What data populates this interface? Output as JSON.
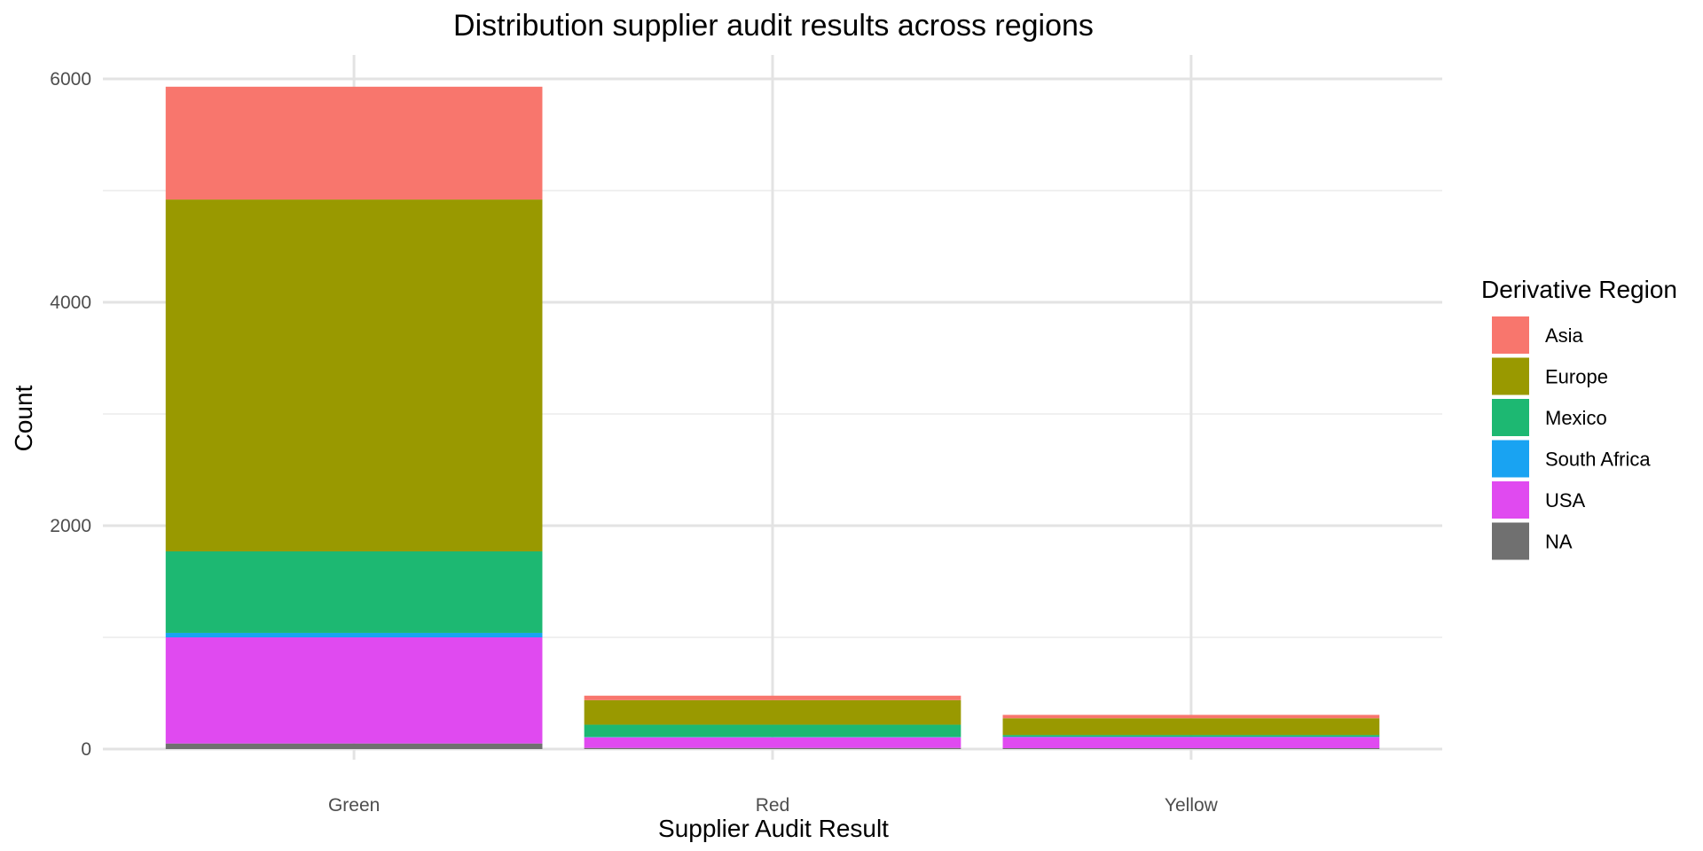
{
  "chart_data": {
    "type": "bar",
    "stacked": true,
    "title": "Distribution supplier audit results across regions",
    "xlabel": "Supplier Audit Result",
    "ylabel": "Count",
    "categories": [
      "Green",
      "Red",
      "Yellow"
    ],
    "ylim": [
      0,
      6200
    ],
    "yticks": [
      0,
      2000,
      4000,
      6000
    ],
    "grid": true,
    "legend": {
      "title": "Derivative Region",
      "position": "right"
    },
    "series": [
      {
        "name": "Asia",
        "color": "#F8766D",
        "values": [
          1010,
          40,
          30
        ]
      },
      {
        "name": "Europe",
        "color": "#999900",
        "values": [
          3150,
          220,
          150
        ]
      },
      {
        "name": "Mexico",
        "color": "#1DB872",
        "values": [
          730,
          110,
          15
        ]
      },
      {
        "name": "South Africa",
        "color": "#19A3F2",
        "values": [
          40,
          3,
          3
        ]
      },
      {
        "name": "USA",
        "color": "#E04AF0",
        "values": [
          950,
          95,
          100
        ]
      },
      {
        "name": "NA",
        "color": "#707070",
        "values": [
          50,
          10,
          8
        ]
      }
    ]
  }
}
